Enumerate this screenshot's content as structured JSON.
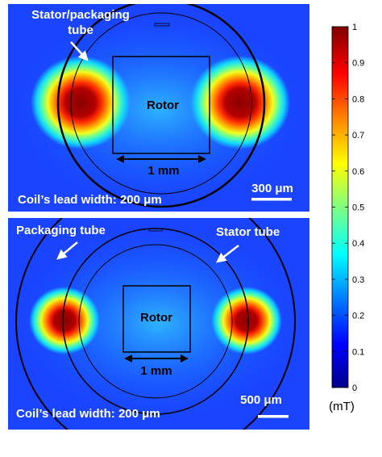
{
  "panels": [
    {
      "stator_label_line1": "Stator/packaging",
      "stator_label_line2": "tube",
      "rotor_label": "Rotor",
      "dimension_label": "1 mm",
      "lead_width_label": "Coil’s lead width: 200 μm",
      "scale_bar_label": "300 μm"
    },
    {
      "packaging_label": "Packaging tube",
      "stator_label": "Stator tube",
      "rotor_label": "Rotor",
      "dimension_label": "1 mm",
      "lead_width_label": "Coil’s  lead width: 200 μm",
      "scale_bar_label": "500 μm"
    }
  ],
  "colorbar": {
    "ticks": [
      "0",
      "0.1",
      "0.2",
      "0.3",
      "0.4",
      "0.5",
      "0.6",
      "0.7",
      "0.8",
      "0.9",
      "1"
    ],
    "unit": "(mT)",
    "colors": [
      "#00008c",
      "#0000ff",
      "#0080ff",
      "#00ffff",
      "#80ff80",
      "#ffff00",
      "#ff8000",
      "#ff0000",
      "#800000"
    ]
  }
}
